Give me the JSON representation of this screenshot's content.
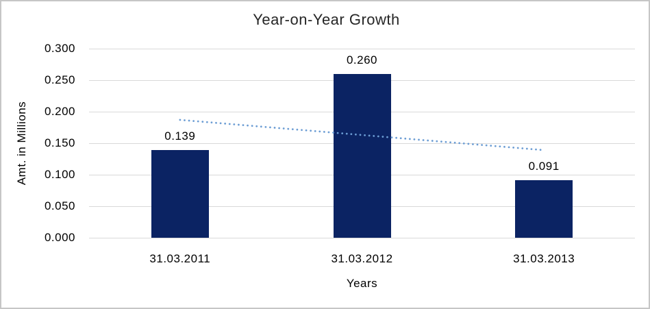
{
  "chart_data": {
    "type": "bar",
    "title": "Year-on-Year Growth",
    "xlabel": "Years",
    "ylabel": "Amt. in Millions",
    "categories": [
      "31.03.2011",
      "31.03.2012",
      "31.03.2013"
    ],
    "values": [
      0.139,
      0.26,
      0.091
    ],
    "value_labels": [
      "0.139",
      "0.260",
      "0.091"
    ],
    "y_ticks": [
      {
        "value": 0.0,
        "label": "0.000"
      },
      {
        "value": 0.05,
        "label": "0.050"
      },
      {
        "value": 0.1,
        "label": "0.100"
      },
      {
        "value": 0.15,
        "label": "0.150"
      },
      {
        "value": 0.2,
        "label": "0.200"
      },
      {
        "value": 0.25,
        "label": "0.250"
      },
      {
        "value": 0.3,
        "label": "0.300"
      }
    ],
    "ylim": [
      0,
      0.3
    ],
    "grid": true,
    "legend": "none",
    "trendline": {
      "style": "dotted",
      "start_value": 0.187,
      "end_value": 0.139
    },
    "colors": {
      "bar": "#0b2363",
      "trendline": "#6c9dd4",
      "gridline": "#d9d9d9",
      "border": "#c6c6c6",
      "background": "#ffffff",
      "text": "#000000"
    }
  }
}
